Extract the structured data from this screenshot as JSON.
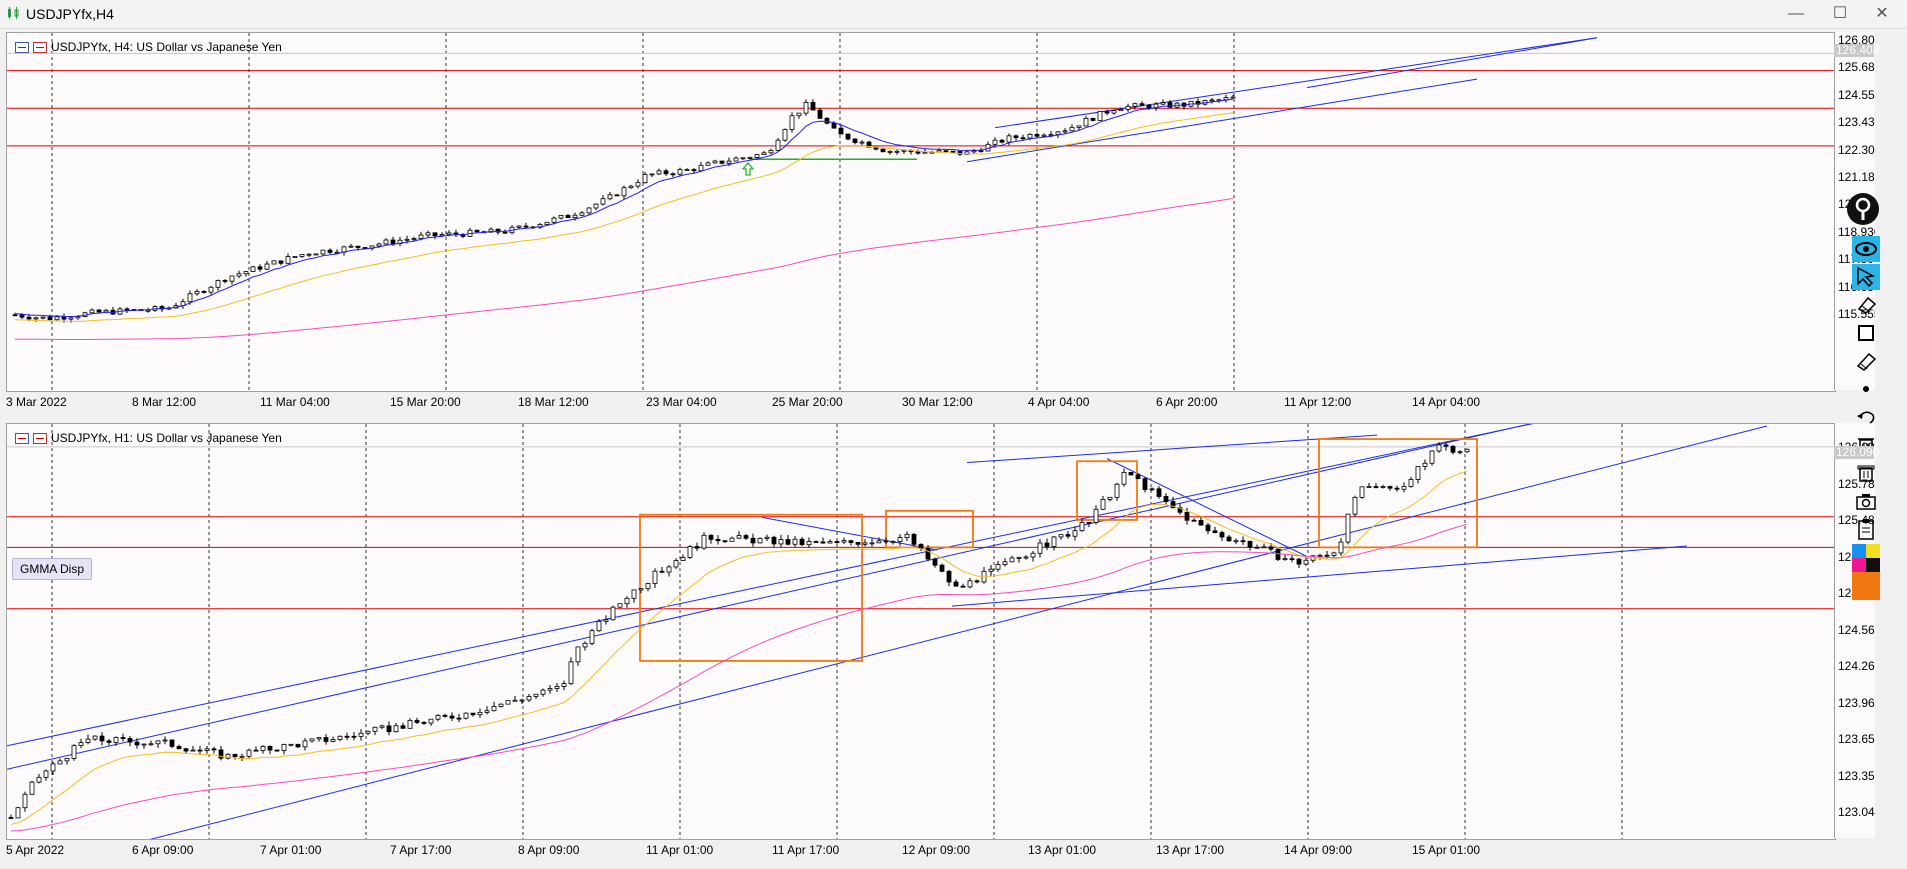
{
  "window": {
    "title": "USDJPYfx,H4",
    "controls": [
      "minimize-icon",
      "maximize-icon",
      "close-icon"
    ]
  },
  "chart_top": {
    "label": "USDJPYfx, H4:  US Dollar vs Japanese Yen",
    "price_ticks": [
      "126.805",
      "125.680",
      "124.555",
      "123.430",
      "122.305",
      "121.180",
      "120.055",
      "118.930",
      "117.805",
      "116.680",
      "115.555"
    ],
    "current_price": "126.408",
    "time_labels": [
      "3 Mar 2022",
      "8 Mar 12:00",
      "11 Mar 04:00",
      "15 Mar 20:00",
      "18 Mar 12:00",
      "23 Mar 04:00",
      "25 Mar 20:00",
      "30 Mar 12:00",
      "4 Apr 04:00",
      "6 Apr 20:00",
      "11 Apr 12:00",
      "14 Apr 04:00"
    ],
    "h_levels": [
      125.7,
      124.15,
      122.6
    ]
  },
  "chart_bottom": {
    "label": "USDJPYfx, H1:  US Dollar vs Japanese Yen",
    "price_ticks": [
      "126.090",
      "125.785",
      "125.480",
      "125.175",
      "124.870",
      "124.565",
      "124.265",
      "123.960",
      "123.655",
      "123.350",
      "123.045"
    ],
    "current_price": "126.090",
    "time_labels": [
      "5 Apr 2022",
      "6 Apr 09:00",
      "7 Apr 01:00",
      "7 Apr 17:00",
      "8 Apr 09:00",
      "11 Apr 01:00",
      "11 Apr 17:00",
      "12 Apr 09:00",
      "13 Apr 01:00",
      "13 Apr 17:00",
      "14 Apr 09:00",
      "15 Apr 01:00"
    ],
    "indicator_button": "GMMA Disp",
    "h_levels": [
      125.555,
      125.32,
      124.85
    ]
  },
  "toolbar": {
    "items": [
      "pin-icon",
      "eye-icon",
      "cursor-icon",
      "eraser-icon",
      "rectangle-icon",
      "ruler-icon",
      "dot-icon",
      "undo-icon",
      "trash-icon",
      "trash-stack-icon",
      "camera-icon",
      "clipboard-icon",
      "color-palette-icon"
    ]
  },
  "colors": {
    "background": "#fcfafa",
    "hline": "#e00000",
    "channel": "#1a2fe0",
    "ema_fast": "#2020f0",
    "ema_mid": "#f0c020",
    "ema_slow": "#f050c0",
    "box": "#f07a10",
    "marker": "#20b020",
    "candle": "#000000"
  },
  "chart_data": [
    {
      "type": "candlestick",
      "title": "USDJPYfx, H4:  US Dollar vs Japanese Yen",
      "x": [
        "3 Mar 2022",
        "8 Mar 12:00",
        "11 Mar 04:00",
        "15 Mar 20:00",
        "18 Mar 12:00",
        "23 Mar 04:00",
        "25 Mar 20:00",
        "30 Mar 12:00",
        "4 Apr 04:00",
        "6 Apr 20:00",
        "11 Apr 12:00",
        "14 Apr 04:00"
      ],
      "y_approx": [
        115.6,
        116.0,
        117.8,
        118.9,
        119.3,
        120.9,
        123.8,
        122.2,
        123.1,
        124.6,
        125.4,
        126.4
      ],
      "ylim": [
        115.0,
        127.0
      ]
    },
    {
      "type": "candlestick",
      "title": "USDJPYfx, H1:  US Dollar vs Japanese Yen",
      "x": [
        "5 Apr 2022",
        "6 Apr 09:00",
        "7 Apr 01:00",
        "7 Apr 17:00",
        "8 Apr 09:00",
        "11 Apr 01:00",
        "11 Apr 17:00",
        "12 Apr 09:00",
        "13 Apr 01:00",
        "13 Apr 17:00",
        "14 Apr 09:00",
        "15 Apr 01:00"
      ],
      "y_approx": [
        123.35,
        123.9,
        123.75,
        123.85,
        124.0,
        124.2,
        125.4,
        125.3,
        125.5,
        125.3,
        125.45,
        126.09
      ],
      "ylim": [
        122.9,
        126.25
      ]
    }
  ]
}
